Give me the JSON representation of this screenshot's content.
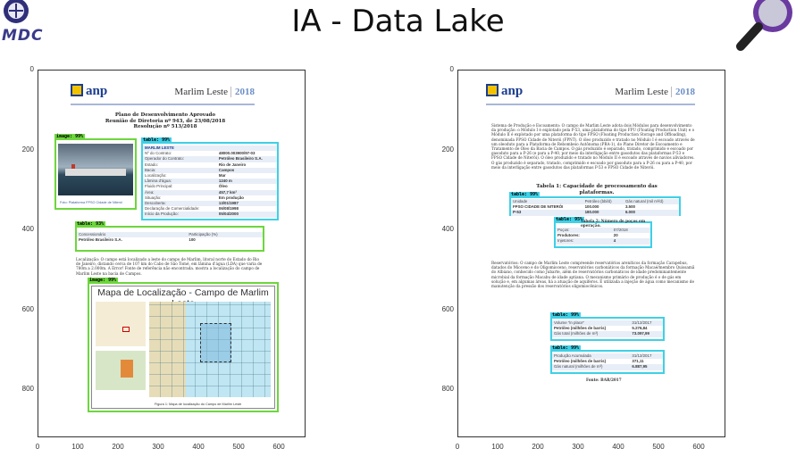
{
  "slide": {
    "title": "IA - Data Lake",
    "logo_left_text": "MDC"
  },
  "axes": {
    "y_ticks": [
      "0",
      "200",
      "400",
      "600",
      "800"
    ],
    "x_ticks": [
      "0",
      "100",
      "200",
      "300",
      "400",
      "500",
      "600"
    ]
  },
  "page1": {
    "brand": "anp",
    "campo": "Marlim Leste",
    "year": "2018",
    "title_lines": [
      "Plano de Desenvolvimento Aprovado",
      "Reunião de Diretoria nº 943, de 23/08/2018",
      "Resolução nº 513/2018"
    ],
    "image_tag": "image: 99%",
    "photo_caption": "Foto: Plataforma FPSO Cidade de Niterói",
    "table1_tag": "table: 99%",
    "table1": [
      [
        "MARLIM LESTE",
        ""
      ],
      [
        "Nº do Contrato:",
        "48000.003900/97-03"
      ],
      [
        "Operador do Contrato:",
        "Petróleo Brasileiro S.A."
      ],
      [
        "Estado:",
        "Rio de Janeiro"
      ],
      [
        "Bacia:",
        "Campos"
      ],
      [
        "Localização:",
        "Mar"
      ],
      [
        "Lâmina d'água:",
        "1240 m"
      ],
      [
        "Fluido Principal:",
        "Óleo"
      ],
      [
        "Área:",
        "457,7 km²"
      ],
      [
        "Situação:",
        "Em produção"
      ],
      [
        "Descoberta:",
        "13/01/1987"
      ],
      [
        "Declaração de Comercialidade:",
        "06/08/1998"
      ],
      [
        "Início da Produção:",
        "05/04/2000"
      ]
    ],
    "table2_tag": "table: 93%",
    "table2": [
      [
        "Concessionário",
        "Participação (%)"
      ],
      [
        "Petróleo Brasileiro S.A.",
        "100"
      ]
    ],
    "localizacao_text": "Localização: O campo está localizado a leste do campo de Marlim, litoral norte do Estado do Rio de Janeiro, distando cerca de 107 km do Cabo de São Tomé, em lâmina d'água (LDA) que varia de 780m a 2.000m. A Error! Fonte de referência não encontrada. mostra a localização do campo de Marlim Leste na bacia de Campos.",
    "image2_tag": "image: 99%",
    "map_title": "Mapa de Localização - Campo de Marlim Leste",
    "map_caption": "Figura 1: Mapa de localização do Campo de Marlim Leste"
  },
  "page2": {
    "brand": "anp",
    "campo": "Marlim Leste",
    "year": "2018",
    "sistema_text": "Sistema de Produção e Escoamento: O campo de Marlim Leste adota dois Módulos para desenvolvimento da produção: o Módulo I é explotado pela P-53, uma plataforma do tipo FPU (Floating Production Unit) e o Módulo II é explotado por uma plataforma do tipo FPSO (Floating Production Storage and Offloading), denominada FPSO Cidade de Niterói (FPNT). O óleo produzido e tratado no Módulo I é escoado através de um oleoduto para a Plataforma de Rebombeio Autônoma (PRA-1), do Plano Diretor de Escoamento e Tratamento de Óleo da Bacia de Campos. O gás produzido é separado, tratado, comprimido e escoado por gasoduto para a P-26 (e para a P-40, por meio da interligação entre gasodutos das plataformas P-53 e FPSO Cidade de Niterói). O óleo produzido e tratado no Módulo II é escoado através de navios aliviadores. O gás produzido é separado, tratado, comprimido e escoado por gasoduto para a P-26 ou para a P-40, por meio da interligação entre gasodutos das plataformas P-53 e FPSO Cidade de Niterói.",
    "tabela1_title": "Tabela 1: Capacidade de processamento das plataformas.",
    "t1_tag": "table: 99%",
    "t1_head": [
      "Unidade",
      "Petróleo (bbl/d)",
      "Gás natural (mil m³/d)"
    ],
    "t1_rows": [
      [
        "FPSO CIDADE DE NITERÓI",
        "100.000",
        "3.500"
      ],
      [
        "P-53",
        "180.000",
        "6.000"
      ]
    ],
    "t2_tag": "table: 95%",
    "t2_title": "Tabela 2: Número de poços em operação.",
    "t2_rows": [
      [
        "Poços:",
        "07/2018"
      ],
      [
        "Produtores:",
        "20"
      ],
      [
        "Injetores:",
        "4"
      ]
    ],
    "reservatorios_text": "Reservatórios: O campo de Marlim Leste compreende reservatórios areníticos da formação Carapebus, datados do Mioceno e do Oligomioceno, reservatórios carbonáticos da formação Macaé/membro Quissamã do Albiano, conhecido como Jubarte, além de reservatórios carbonáticos de idade predominantemente microbial da formação Macabu de idade aptiana. O mecanismo primário de produção é o de gás em solução e, em algumas áreas, há a atuação de aquíferos. É utilizada a injeção de água como mecanismo de manutenção da pressão dos reservatórios oligomiocênicos.",
    "t3_tag": "table: 99%",
    "t3_rows": [
      [
        "Volume \"in place\"",
        "31/12/2017"
      ],
      [
        "Petróleo (milhões de barris)",
        "5.276,84"
      ],
      [
        "Gás total (milhões de m³)",
        "73.097,99"
      ]
    ],
    "t4_tag": "table: 99%",
    "t4_rows": [
      [
        "Produção Acumulada",
        "31/12/2017"
      ],
      [
        "Petróleo (milhões de barris)",
        "371,11"
      ],
      [
        "Gás natural (milhões de m³)",
        "6.887,95"
      ]
    ],
    "fonte": "Fonte: BAR/2017"
  }
}
